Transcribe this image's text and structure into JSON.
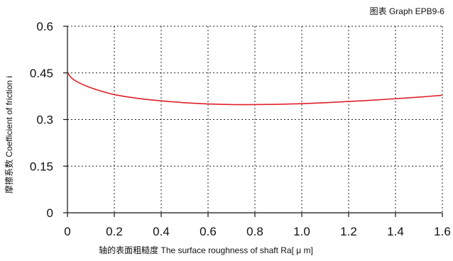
{
  "chart_data": {
    "type": "line",
    "figure_label": "图表 Graph EPB9-6",
    "title": "",
    "xlabel": "轴的表面粗糙度 The surface roughness of shaft  Ra[ μ m]",
    "ylabel": "摩擦系数 Coefficient of friction i",
    "xlim": [
      0,
      1.6
    ],
    "ylim": [
      0,
      0.6
    ],
    "x_ticks": [
      "0",
      "0.2",
      "0.4",
      "0.6",
      "0.8",
      "1.0",
      "1.2",
      "1.4",
      "1.6"
    ],
    "y_ticks": [
      "0",
      "0.15",
      "0.3",
      "0.45",
      "0.6"
    ],
    "x_tick_values": [
      0,
      0.2,
      0.4,
      0.6,
      0.8,
      1.0,
      1.2,
      1.4,
      1.6
    ],
    "y_tick_values": [
      0,
      0.15,
      0.3,
      0.45,
      0.6
    ],
    "grid": true,
    "series_color": "#e0202a",
    "series": [
      {
        "x": [
          0,
          0.02,
          0.05,
          0.1,
          0.15,
          0.2,
          0.3,
          0.4,
          0.5,
          0.6,
          0.7,
          0.8,
          0.9,
          1.0,
          1.1,
          1.2,
          1.3,
          1.4,
          1.5,
          1.6
        ],
        "values": [
          0.45,
          0.432,
          0.418,
          0.402,
          0.39,
          0.38,
          0.368,
          0.36,
          0.354,
          0.35,
          0.348,
          0.348,
          0.349,
          0.351,
          0.354,
          0.358,
          0.362,
          0.367,
          0.372,
          0.378
        ]
      }
    ]
  }
}
